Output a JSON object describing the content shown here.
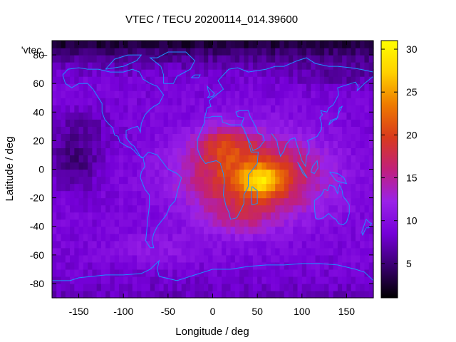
{
  "chart_data": {
    "type": "heatmap",
    "title": "VTEC / TECU 20200114_014.39600",
    "xlabel": "Longitude / deg",
    "ylabel": "Latitude / deg",
    "legend_key": "'vtec_",
    "xlim": [
      -180,
      180
    ],
    "ylim": [
      -90,
      90
    ],
    "xticks": [
      -150,
      -100,
      -50,
      0,
      50,
      100,
      150
    ],
    "xtick_labels": [
      "-150",
      "-100",
      "-50",
      "0",
      "50",
      "100",
      "150"
    ],
    "yticks": [
      -80,
      -60,
      -40,
      -20,
      0,
      20,
      40,
      60,
      80
    ],
    "ytick_labels": [
      "-80",
      "-60",
      "-40",
      "-20",
      "0",
      "20",
      "40",
      "60",
      "80"
    ],
    "colorbar": {
      "range": [
        1,
        31
      ],
      "ticks": [
        5,
        10,
        15,
        20,
        25,
        30
      ],
      "tick_labels": [
        "5",
        "10",
        "15",
        "20",
        "25",
        "30"
      ],
      "colormap": [
        "#000000",
        "#3a0070",
        "#7500d8",
        "#9a22e8",
        "#c1207a",
        "#d93a1c",
        "#ee7a00",
        "#ffd000",
        "#ffff00"
      ]
    },
    "field": {
      "grid_step_deg": 5,
      "background_tecu": 9,
      "features": [
        {
          "lon": 45,
          "lat": -5,
          "lon_width": 75,
          "lat_width": 28,
          "amplitude_tecu": 13
        },
        {
          "lon": 55,
          "lat": -8,
          "lon_width": 22,
          "lat_width": 10,
          "amplitude_tecu": 8
        },
        {
          "lon": 10,
          "lat": 18,
          "lon_width": 28,
          "lat_width": 12,
          "amplitude_tecu": 6
        },
        {
          "lon": 30,
          "lat": -35,
          "lon_width": 35,
          "lat_width": 12,
          "amplitude_tecu": 3
        },
        {
          "lon": -60,
          "lat": -55,
          "lon_width": 50,
          "lat_width": 10,
          "amplitude_tecu": 2
        },
        {
          "lon": -155,
          "lat": 5,
          "lon_width": 30,
          "lat_width": 18,
          "amplitude_tecu": -4
        },
        {
          "lon": -150,
          "lat": 30,
          "lon_width": 40,
          "lat_width": 12,
          "amplitude_tecu": -2
        },
        {
          "lon": 150,
          "lat": 65,
          "lon_width": 60,
          "lat_width": 10,
          "amplitude_tecu": -2
        }
      ],
      "polar_depletion_tecu": 7
    },
    "coastlines": [
      [
        [
          -168,
          66
        ],
        [
          -162,
          70
        ],
        [
          -150,
          71
        ],
        [
          -140,
          70
        ],
        [
          -128,
          70
        ],
        [
          -115,
          68
        ],
        [
          -100,
          68
        ],
        [
          -90,
          70
        ],
        [
          -82,
          68
        ],
        [
          -78,
          63
        ],
        [
          -70,
          60
        ],
        [
          -62,
          58
        ],
        [
          -55,
          52
        ],
        [
          -60,
          46
        ],
        [
          -66,
          44
        ],
        [
          -70,
          42
        ],
        [
          -76,
          38
        ],
        [
          -80,
          32
        ],
        [
          -81,
          26
        ],
        [
          -84,
          30
        ],
        [
          -90,
          29
        ],
        [
          -97,
          27
        ],
        [
          -97,
          22
        ],
        [
          -92,
          18
        ],
        [
          -88,
          16
        ],
        [
          -84,
          12
        ],
        [
          -80,
          8
        ],
        [
          -78,
          8
        ],
        [
          -84,
          10
        ],
        [
          -88,
          13
        ],
        [
          -92,
          15
        ],
        [
          -96,
          16
        ],
        [
          -104,
          19
        ],
        [
          -106,
          23
        ],
        [
          -110,
          24
        ],
        [
          -112,
          29
        ],
        [
          -117,
          32
        ],
        [
          -121,
          35
        ],
        [
          -124,
          40
        ],
        [
          -124,
          46
        ],
        [
          -128,
          50
        ],
        [
          -134,
          56
        ],
        [
          -140,
          60
        ],
        [
          -150,
          60
        ],
        [
          -158,
          57
        ],
        [
          -165,
          60
        ],
        [
          -168,
          66
        ]
      ],
      [
        [
          -78,
          8
        ],
        [
          -76,
          2
        ],
        [
          -80,
          -2
        ],
        [
          -81,
          -6
        ],
        [
          -76,
          -14
        ],
        [
          -71,
          -18
        ],
        [
          -71,
          -26
        ],
        [
          -73,
          -36
        ],
        [
          -74,
          -44
        ],
        [
          -75,
          -50
        ],
        [
          -70,
          -55
        ],
        [
          -66,
          -55
        ],
        [
          -68,
          -50
        ],
        [
          -66,
          -45
        ],
        [
          -62,
          -40
        ],
        [
          -57,
          -36
        ],
        [
          -52,
          -32
        ],
        [
          -48,
          -26
        ],
        [
          -42,
          -22
        ],
        [
          -39,
          -14
        ],
        [
          -35,
          -6
        ],
        [
          -40,
          -3
        ],
        [
          -50,
          0
        ],
        [
          -56,
          5
        ],
        [
          -62,
          10
        ],
        [
          -72,
          12
        ],
        [
          -78,
          8
        ]
      ],
      [
        [
          -55,
          60
        ],
        [
          -44,
          60
        ],
        [
          -40,
          65
        ],
        [
          -25,
          70
        ],
        [
          -20,
          76
        ],
        [
          -30,
          82
        ],
        [
          -50,
          82
        ],
        [
          -62,
          78
        ],
        [
          -70,
          78
        ],
        [
          -58,
          72
        ],
        [
          -55,
          66
        ],
        [
          -55,
          60
        ]
      ],
      [
        [
          -9,
          36
        ],
        [
          -6,
          43
        ],
        [
          -2,
          44
        ],
        [
          -4,
          48
        ],
        [
          2,
          51
        ],
        [
          8,
          54
        ],
        [
          12,
          56
        ],
        [
          10,
          58
        ],
        [
          6,
          62
        ],
        [
          12,
          66
        ],
        [
          18,
          70
        ],
        [
          28,
          71
        ],
        [
          40,
          68
        ],
        [
          50,
          69
        ],
        [
          60,
          70
        ],
        [
          70,
          72
        ],
        [
          80,
          72
        ],
        [
          95,
          76
        ],
        [
          105,
          78
        ],
        [
          115,
          74
        ],
        [
          130,
          72
        ],
        [
          140,
          72
        ],
        [
          155,
          71
        ],
        [
          165,
          70
        ],
        [
          180,
          68
        ]
      ],
      [
        [
          -9,
          36
        ],
        [
          -5,
          36
        ],
        [
          0,
          37
        ],
        [
          10,
          37
        ],
        [
          11,
          33
        ],
        [
          20,
          31
        ],
        [
          32,
          31
        ],
        [
          35,
          28
        ],
        [
          39,
          22
        ],
        [
          43,
          12
        ],
        [
          51,
          12
        ],
        [
          50,
          4
        ],
        [
          40,
          -4
        ],
        [
          40,
          -12
        ],
        [
          35,
          -18
        ],
        [
          35,
          -24
        ],
        [
          32,
          -28
        ],
        [
          27,
          -34
        ],
        [
          20,
          -35
        ],
        [
          18,
          -30
        ],
        [
          15,
          -26
        ],
        [
          12,
          -18
        ],
        [
          13,
          -8
        ],
        [
          12,
          -3
        ],
        [
          9,
          3
        ],
        [
          9,
          4
        ],
        [
          4,
          6
        ],
        [
          -3,
          5
        ],
        [
          -8,
          4
        ],
        [
          -13,
          8
        ],
        [
          -17,
          14
        ],
        [
          -17,
          21
        ],
        [
          -13,
          27
        ],
        [
          -9,
          33
        ],
        [
          -9,
          36
        ]
      ],
      [
        [
          32,
          31
        ],
        [
          35,
          36
        ],
        [
          28,
          37
        ],
        [
          26,
          40
        ],
        [
          30,
          41
        ],
        [
          40,
          41
        ],
        [
          42,
          37
        ],
        [
          48,
          30
        ],
        [
          51,
          25
        ],
        [
          56,
          24
        ],
        [
          58,
          20
        ],
        [
          52,
          15
        ],
        [
          45,
          13
        ],
        [
          43,
          17
        ],
        [
          39,
          22
        ],
        [
          35,
          28
        ],
        [
          32,
          31
        ]
      ],
      [
        [
          66,
          25
        ],
        [
          72,
          20
        ],
        [
          73,
          16
        ],
        [
          76,
          9
        ],
        [
          80,
          13
        ],
        [
          82,
          17
        ],
        [
          87,
          21
        ],
        [
          92,
          22
        ],
        [
          95,
          16
        ],
        [
          98,
          10
        ],
        [
          100,
          6
        ],
        [
          104,
          2
        ],
        [
          105,
          9
        ],
        [
          108,
          12
        ],
        [
          108,
          17
        ],
        [
          106,
          20
        ],
        [
          110,
          21
        ],
        [
          117,
          23
        ],
        [
          122,
          28
        ],
        [
          122,
          32
        ],
        [
          120,
          36
        ],
        [
          123,
          38
        ],
        [
          121,
          41
        ],
        [
          128,
          40
        ],
        [
          130,
          43
        ],
        [
          135,
          45
        ],
        [
          141,
          52
        ],
        [
          140,
          57
        ],
        [
          150,
          59
        ],
        [
          160,
          61
        ],
        [
          163,
          58
        ],
        [
          162,
          55
        ],
        [
          170,
          60
        ],
        [
          180,
          65
        ]
      ],
      [
        [
          114,
          -22
        ],
        [
          114,
          -26
        ],
        [
          115,
          -34
        ],
        [
          118,
          -35
        ],
        [
          124,
          -34
        ],
        [
          130,
          -31
        ],
        [
          135,
          -34
        ],
        [
          138,
          -35
        ],
        [
          141,
          -38
        ],
        [
          146,
          -39
        ],
        [
          150,
          -37
        ],
        [
          153,
          -31
        ],
        [
          153,
          -25
        ],
        [
          150,
          -22
        ],
        [
          146,
          -19
        ],
        [
          145,
          -15
        ],
        [
          142,
          -11
        ],
        [
          140,
          -17
        ],
        [
          136,
          -12
        ],
        [
          131,
          -11
        ],
        [
          129,
          -15
        ],
        [
          125,
          -14
        ],
        [
          122,
          -18
        ],
        [
          114,
          -22
        ]
      ],
      [
        [
          44,
          -12
        ],
        [
          50,
          -15
        ],
        [
          50,
          -24
        ],
        [
          44,
          -25
        ],
        [
          43,
          -20
        ],
        [
          44,
          -12
        ]
      ],
      [
        [
          -180,
          -78
        ],
        [
          -160,
          -78
        ],
        [
          -150,
          -76
        ],
        [
          -120,
          -74
        ],
        [
          -100,
          -74
        ],
        [
          -80,
          -73
        ],
        [
          -70,
          -70
        ],
        [
          -60,
          -64
        ],
        [
          -62,
          -70
        ],
        [
          -60,
          -75
        ],
        [
          -40,
          -78
        ],
        [
          -20,
          -74
        ],
        [
          0,
          -70
        ],
        [
          20,
          -70
        ],
        [
          40,
          -68
        ],
        [
          60,
          -67
        ],
        [
          80,
          -67
        ],
        [
          100,
          -66
        ],
        [
          120,
          -66
        ],
        [
          140,
          -67
        ],
        [
          160,
          -70
        ],
        [
          170,
          -72
        ],
        [
          180,
          -78
        ]
      ],
      [
        [
          95,
          5
        ],
        [
          100,
          0
        ],
        [
          105,
          -5
        ],
        [
          106,
          -6
        ],
        [
          101,
          -3
        ],
        [
          96,
          4
        ],
        [
          95,
          5
        ]
      ],
      [
        [
          110,
          -2
        ],
        [
          114,
          -3
        ],
        [
          118,
          1
        ],
        [
          117,
          6
        ],
        [
          112,
          2
        ],
        [
          110,
          -2
        ]
      ],
      [
        [
          131,
          -2
        ],
        [
          140,
          -3
        ],
        [
          147,
          -6
        ],
        [
          150,
          -10
        ],
        [
          143,
          -9
        ],
        [
          138,
          -8
        ],
        [
          131,
          -2
        ]
      ],
      [
        [
          130,
          31
        ],
        [
          132,
          34
        ],
        [
          136,
          35
        ],
        [
          140,
          36
        ],
        [
          141,
          40
        ],
        [
          142,
          43
        ],
        [
          145,
          44
        ],
        [
          141,
          39
        ],
        [
          139,
          35
        ],
        [
          135,
          34
        ],
        [
          130,
          31
        ]
      ],
      [
        [
          172,
          -35
        ],
        [
          175,
          -37
        ],
        [
          178,
          -38
        ],
        [
          175,
          -41
        ],
        [
          172,
          -41
        ],
        [
          168,
          -46
        ],
        [
          167,
          -44
        ],
        [
          172,
          -35
        ]
      ],
      [
        [
          -6,
          50
        ],
        [
          0,
          51
        ],
        [
          2,
          53
        ],
        [
          -3,
          56
        ],
        [
          -6,
          58
        ],
        [
          -5,
          55
        ],
        [
          -3,
          52
        ],
        [
          -6,
          50
        ]
      ],
      [
        [
          -24,
          64
        ],
        [
          -16,
          64
        ],
        [
          -14,
          66
        ],
        [
          -20,
          66
        ],
        [
          -24,
          64
        ]
      ],
      [
        [
          -120,
          70
        ],
        [
          -100,
          72
        ],
        [
          -85,
          76
        ],
        [
          -80,
          80
        ],
        [
          -95,
          80
        ],
        [
          -110,
          77
        ],
        [
          -120,
          70
        ]
      ]
    ]
  }
}
